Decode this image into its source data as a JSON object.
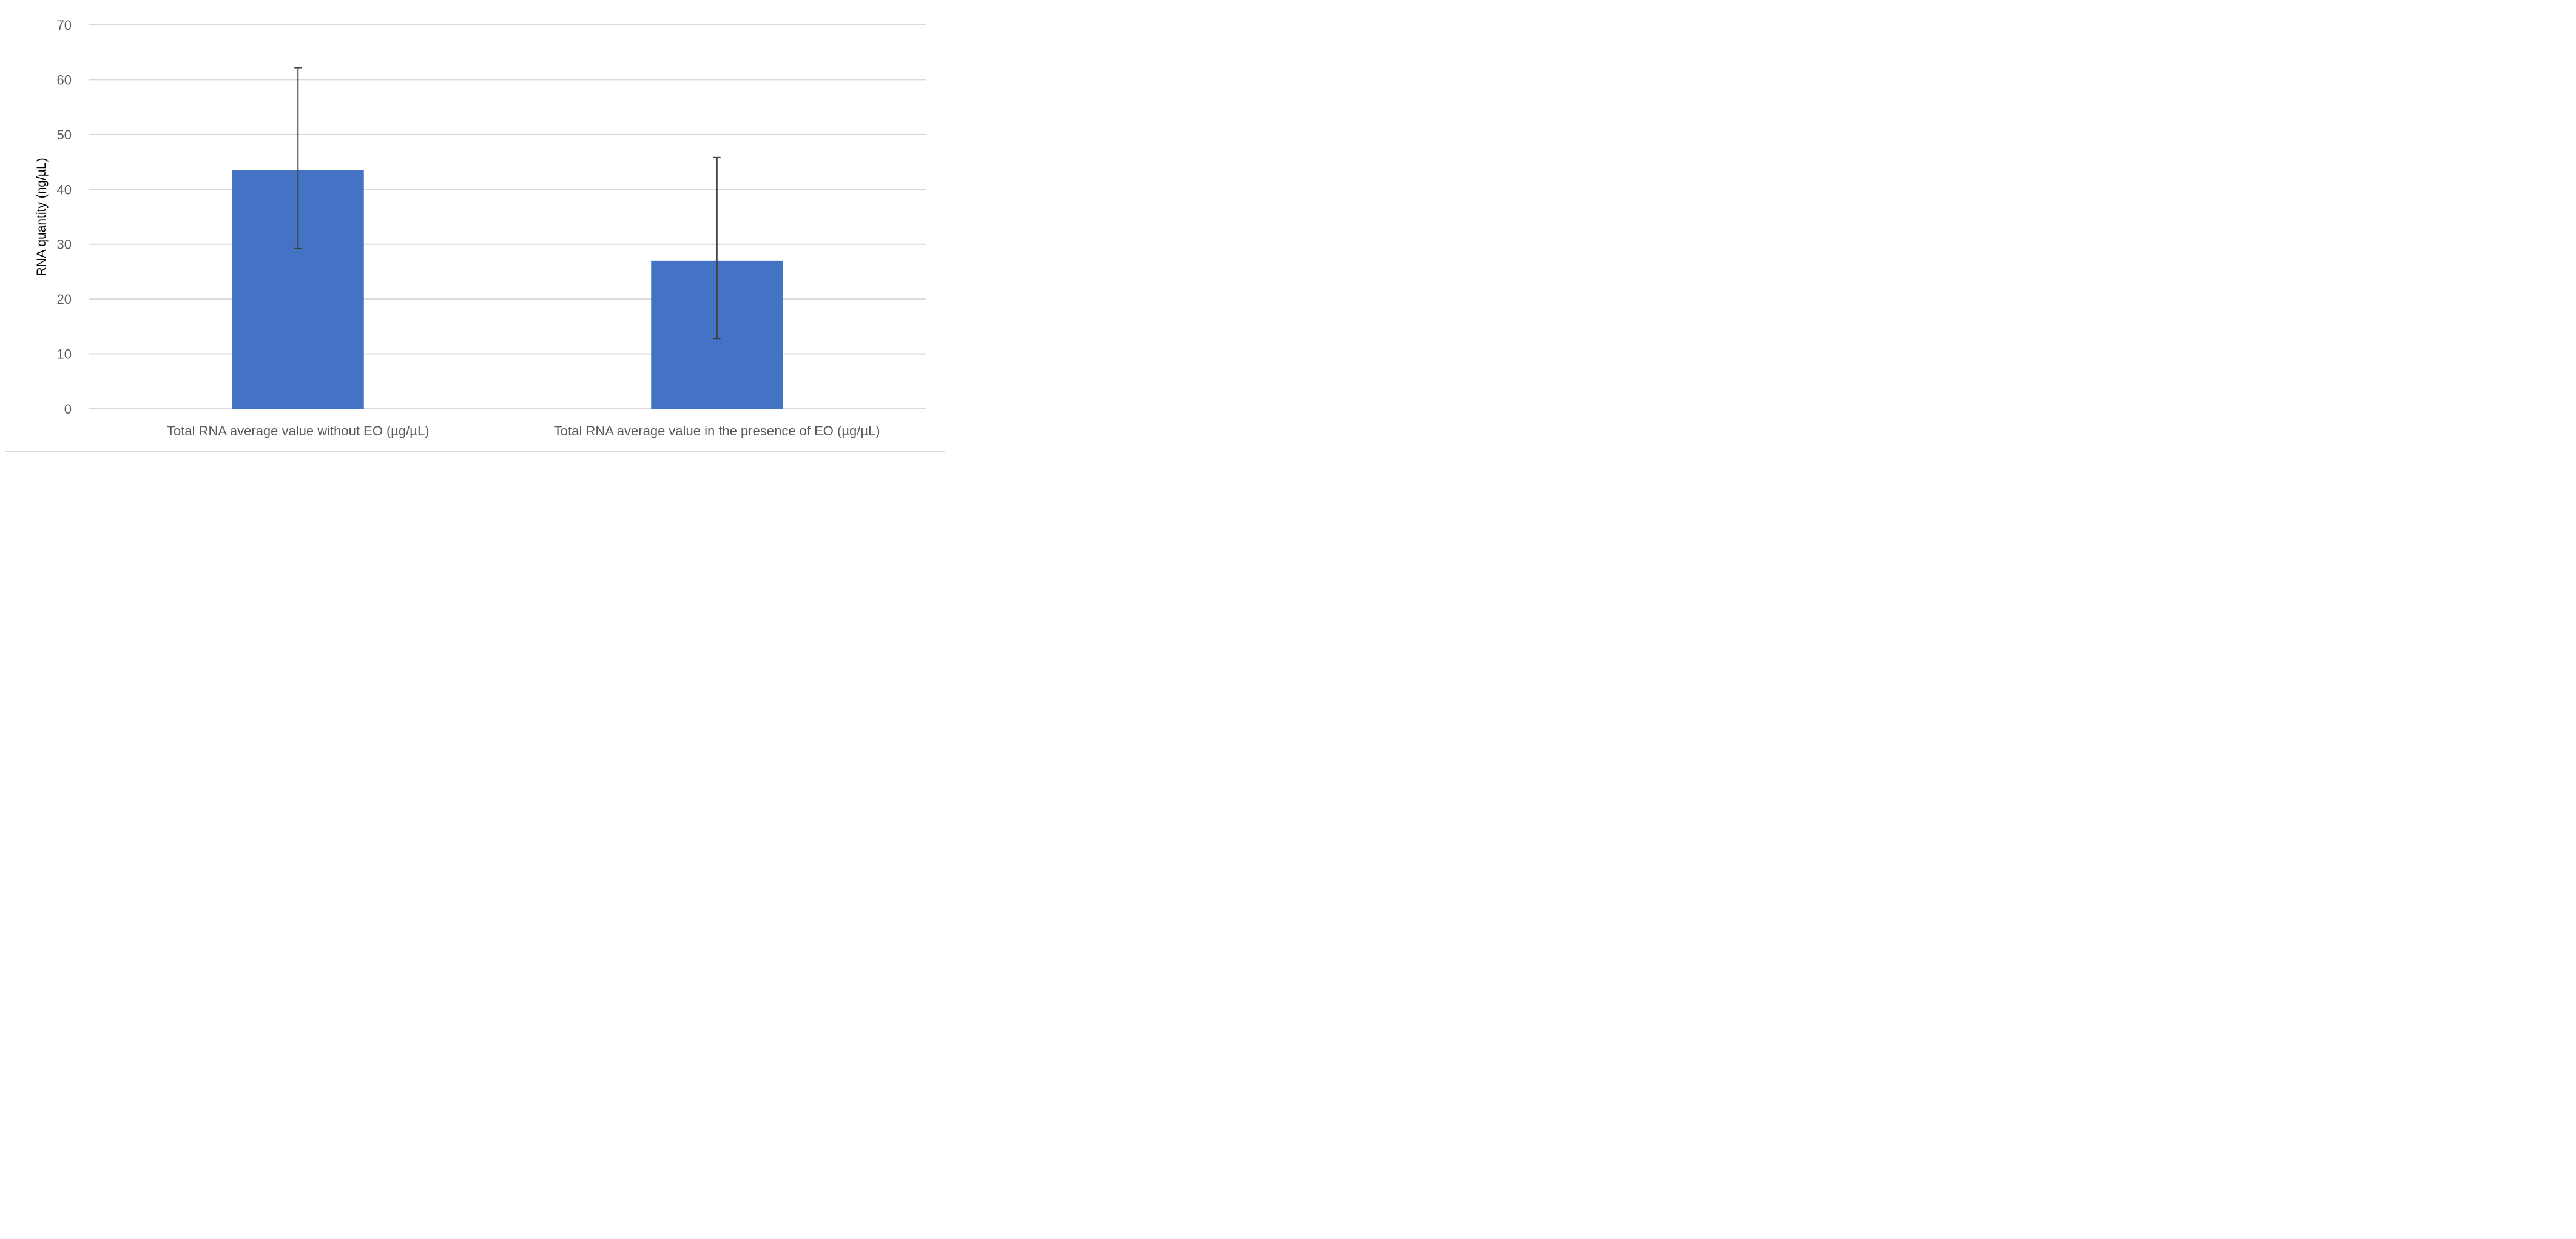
{
  "chart_data": {
    "type": "bar",
    "title": "",
    "xlabel": "",
    "ylabel": "RNA quantity (ng/µL)",
    "ylim": [
      0,
      70
    ],
    "yticks": [
      0,
      10,
      20,
      30,
      40,
      50,
      60,
      70
    ],
    "grid": true,
    "legend": "none",
    "bar_color": "#4472c4",
    "categories": [
      "Total RNA average value without EO (µg/µL)",
      "Total RNA average value in the presence of EO (µg/µL)"
    ],
    "values": [
      43.5,
      27.0
    ],
    "error_bars": [
      {
        "lower": 29.2,
        "upper": 62.2
      },
      {
        "lower": 12.8,
        "upper": 45.8
      }
    ]
  }
}
